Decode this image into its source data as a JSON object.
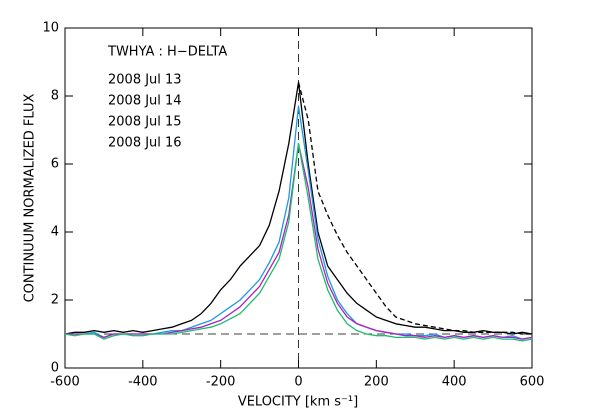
{
  "chart_data": {
    "type": "line",
    "annotation": "TWHYA : H−DELTA",
    "xlabel": "VELOCITY [km s⁻¹]",
    "ylabel": "CONTINUUM  NORMALIZED  FLUX",
    "x": [
      -600,
      -575,
      -550,
      -525,
      -500,
      -475,
      -450,
      -425,
      -400,
      -375,
      -350,
      -325,
      -300,
      -275,
      -250,
      -225,
      -200,
      -175,
      -150,
      -125,
      -100,
      -75,
      -50,
      -25,
      0,
      25,
      50,
      75,
      100,
      125,
      150,
      175,
      200,
      225,
      250,
      275,
      300,
      325,
      350,
      375,
      400,
      425,
      450,
      475,
      500,
      525,
      550,
      575,
      600
    ],
    "series": [
      {
        "name": "2008 Jul 13",
        "color": "#000000",
        "linestyle": "solid",
        "values": [
          1.0,
          1.05,
          1.05,
          1.1,
          1.05,
          1.1,
          1.05,
          1.1,
          1.05,
          1.1,
          1.15,
          1.2,
          1.3,
          1.4,
          1.6,
          1.9,
          2.3,
          2.6,
          3.0,
          3.3,
          3.6,
          4.2,
          5.2,
          6.6,
          8.4,
          6.0,
          4.0,
          3.0,
          2.6,
          2.2,
          1.9,
          1.7,
          1.5,
          1.4,
          1.3,
          1.25,
          1.2,
          1.2,
          1.15,
          1.1,
          1.1,
          1.05,
          1.05,
          1.1,
          1.05,
          1.05,
          1.0,
          1.05,
          1.0
        ]
      },
      {
        "name": "2008 Jul 14",
        "color": "#1a9ae0",
        "linestyle": "solid",
        "values": [
          1.0,
          1.0,
          1.0,
          1.05,
          0.9,
          1.0,
          1.0,
          1.0,
          1.0,
          1.0,
          1.05,
          1.1,
          1.1,
          1.2,
          1.3,
          1.4,
          1.6,
          1.8,
          2.0,
          2.3,
          2.6,
          3.1,
          3.7,
          5.0,
          7.7,
          5.8,
          3.8,
          2.7,
          2.0,
          1.6,
          1.3,
          1.2,
          1.1,
          1.05,
          1.0,
          1.0,
          0.95,
          0.95,
          1.0,
          0.9,
          0.95,
          0.9,
          0.95,
          0.9,
          0.95,
          0.9,
          0.95,
          0.85,
          0.9
        ]
      },
      {
        "name": "2008 Jul 15",
        "color": "#b01ec0",
        "linestyle": "solid",
        "values": [
          1.0,
          1.0,
          1.0,
          1.0,
          0.9,
          1.0,
          1.0,
          1.0,
          1.0,
          1.0,
          1.0,
          1.05,
          1.1,
          1.15,
          1.2,
          1.3,
          1.4,
          1.6,
          1.8,
          2.1,
          2.4,
          2.9,
          3.4,
          4.5,
          6.6,
          5.3,
          3.5,
          2.5,
          1.9,
          1.5,
          1.3,
          1.2,
          1.1,
          1.05,
          1.0,
          0.95,
          0.95,
          0.9,
          0.95,
          0.9,
          0.95,
          0.9,
          0.95,
          0.9,
          0.95,
          0.9,
          0.9,
          0.85,
          0.9
        ]
      },
      {
        "name": "2008 Jul 16",
        "color": "#1cbf6e",
        "linestyle": "solid",
        "values": [
          1.0,
          0.95,
          1.0,
          1.0,
          0.85,
          0.95,
          1.0,
          0.95,
          0.95,
          1.0,
          1.0,
          1.0,
          1.05,
          1.1,
          1.15,
          1.2,
          1.3,
          1.45,
          1.6,
          1.9,
          2.2,
          2.7,
          3.2,
          4.3,
          6.6,
          5.0,
          3.2,
          2.3,
          1.7,
          1.3,
          1.1,
          1.0,
          0.95,
          0.95,
          0.9,
          0.9,
          0.9,
          0.85,
          0.9,
          0.85,
          0.9,
          0.85,
          0.9,
          0.85,
          0.9,
          0.85,
          0.85,
          0.8,
          0.85
        ]
      },
      {
        "color": "#000000",
        "linestyle": "dashed",
        "values": [
          null,
          null,
          null,
          null,
          null,
          null,
          null,
          null,
          null,
          null,
          null,
          null,
          null,
          null,
          null,
          null,
          null,
          null,
          null,
          null,
          null,
          null,
          null,
          null,
          8.4,
          7.3,
          5.2,
          4.5,
          3.9,
          3.4,
          3.0,
          2.6,
          2.2,
          1.8,
          1.5,
          1.4,
          1.3,
          1.25,
          1.2,
          1.15,
          1.1,
          1.1,
          1.05,
          1.05,
          1.05,
          1.05,
          1.05,
          1.0,
          1.0
        ]
      }
    ],
    "reference_lines": {
      "y": 1,
      "x": 0
    },
    "xlim": [
      -600,
      600
    ],
    "xticks": [
      -600,
      -400,
      -200,
      0,
      200,
      400,
      600
    ],
    "ylim": [
      0,
      10
    ],
    "yticks": [
      0,
      2,
      4,
      6,
      8,
      10
    ]
  }
}
